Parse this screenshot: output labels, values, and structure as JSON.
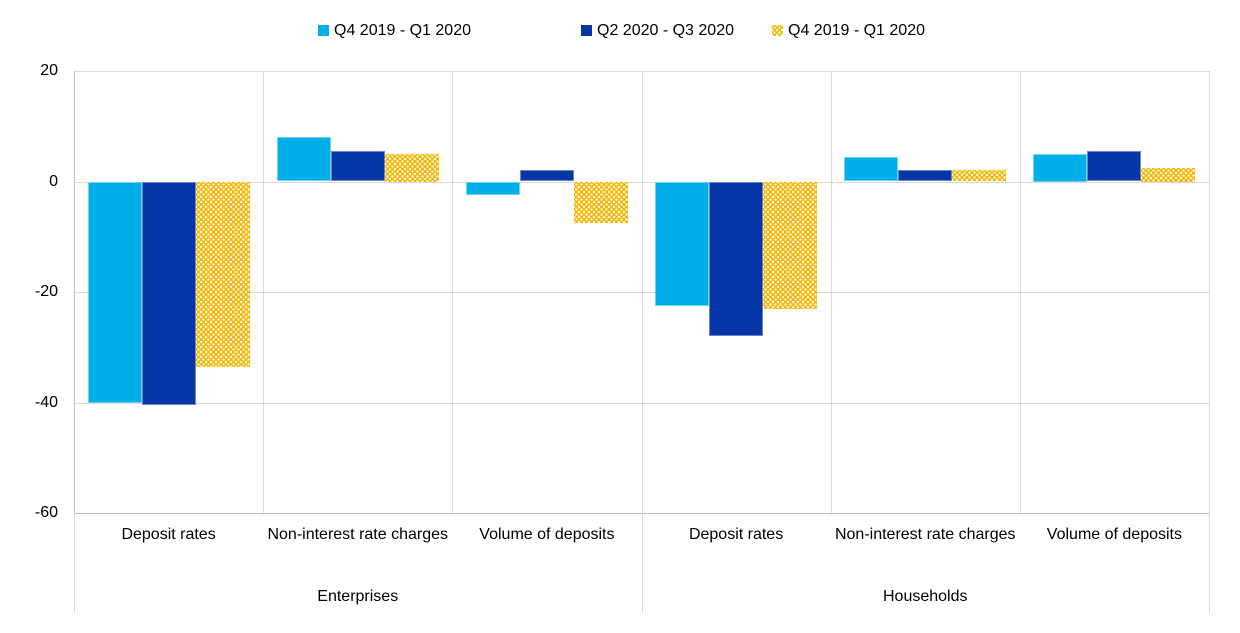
{
  "colors": {
    "series1": "#00AEEA",
    "series2": "#0636A5",
    "series3": "#F7B600",
    "gridline": "#D9D9D9",
    "axis_line": "#BFBFBF",
    "text": "#000000"
  },
  "legend": {
    "items": [
      {
        "label": "Q4 2019 - Q1 2020",
        "swatch": "lightblue-solid"
      },
      {
        "label": "Q2 2020 - Q3 2020",
        "swatch": "darkblue-solid"
      },
      {
        "label": "Q4 2019 - Q1 2020",
        "swatch": "yellow-dotted-pattern"
      }
    ]
  },
  "chart_data": {
    "type": "bar",
    "groups": [
      {
        "label": "Enterprises",
        "categories": [
          "Deposit rates",
          "Non-interest rate charges",
          "Volume of deposits"
        ]
      },
      {
        "label": "Households",
        "categories": [
          "Deposit rates",
          "Non-interest rate charges",
          "Volume of deposits"
        ]
      }
    ],
    "series": [
      {
        "name": "Q4 2019 - Q1 2020",
        "style": "solid-lightblue",
        "values": [
          -40,
          8,
          -2.5,
          -22.5,
          4.5,
          5
        ]
      },
      {
        "name": "Q2 2020 - Q3 2020",
        "style": "solid-darkblue",
        "values": [
          -40.5,
          5.5,
          2,
          -28,
          2,
          5.5
        ]
      },
      {
        "name": "Q4 2019 - Q1 2020",
        "style": "patterned-yellow",
        "values": [
          -33.5,
          5,
          -7.5,
          -23,
          2,
          2.5
        ]
      }
    ],
    "ylim": [
      -60,
      20
    ],
    "yticks": [
      20,
      0,
      -20,
      -40,
      -60
    ],
    "grid": true,
    "legend_position": "top"
  }
}
